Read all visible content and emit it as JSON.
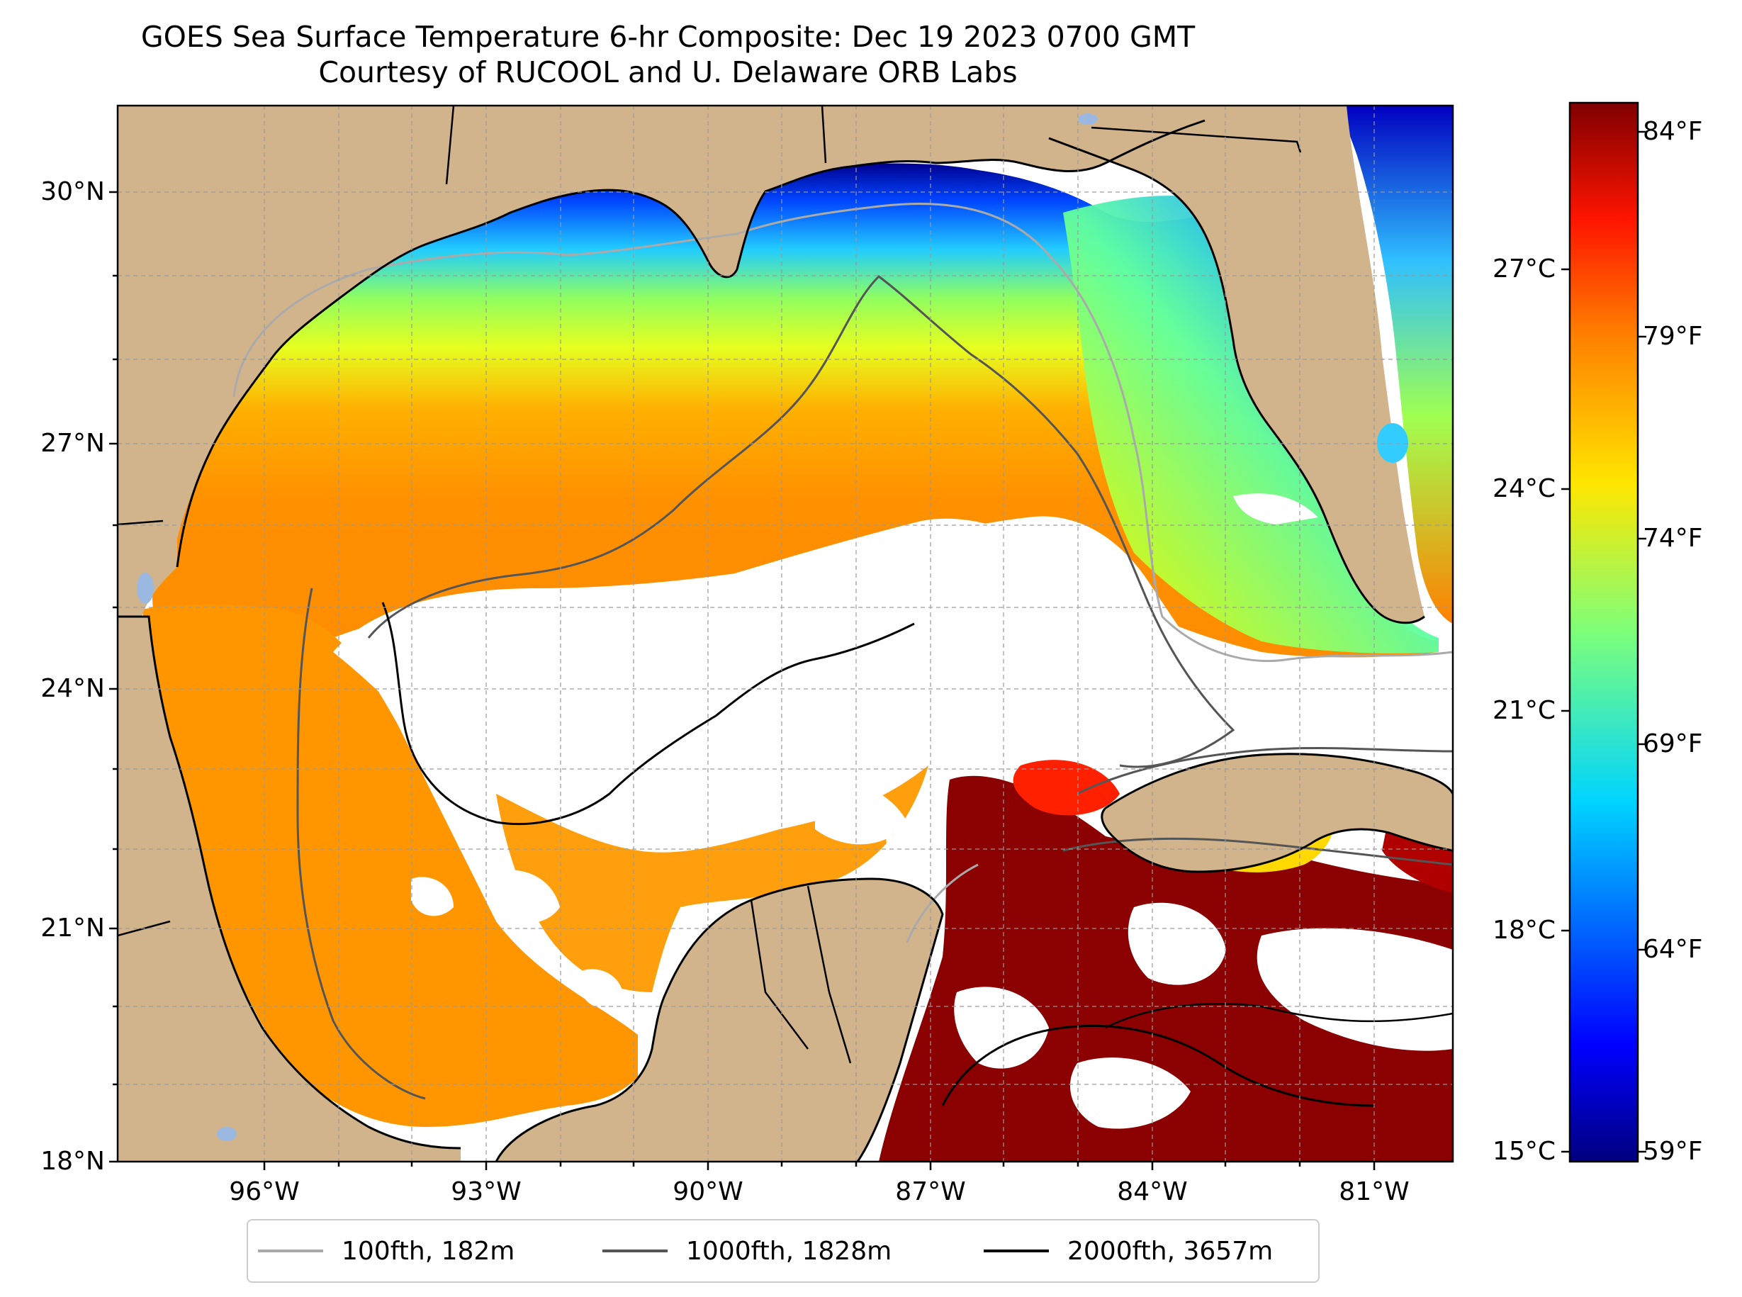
{
  "title": {
    "line1": "GOES Sea Surface Temperature 6-hr Composite: Dec 19 2023 0700 GMT",
    "line2": "Courtesy of RUCOOL and U. Delaware ORB Labs"
  },
  "map": {
    "extent": {
      "lon": [
        -98,
        -80
      ],
      "lat": [
        18,
        31
      ]
    },
    "latitude_ticks": [
      "30°N",
      "27°N",
      "24°N",
      "21°N",
      "18°N"
    ],
    "longitude_ticks": [
      "96°W",
      "93°W",
      "90°W",
      "87°W",
      "84°W",
      "81°W"
    ],
    "grid": true,
    "land_color": "#d2b48c",
    "no_data_color": "#ffffff"
  },
  "colorbar": {
    "celsius_ticks": [
      "27°C",
      "24°C",
      "21°C",
      "18°C",
      "15°C"
    ],
    "fahrenheit_ticks": [
      "84°F",
      "79°F",
      "74°F",
      "69°F",
      "64°F",
      "59°F"
    ],
    "colormap": "jet",
    "range_c": [
      15,
      29
    ]
  },
  "legend": {
    "items": [
      {
        "label": "100fth, 182m",
        "color": "#aaaaaa"
      },
      {
        "label": "1000fth, 1828m",
        "color": "#555555"
      },
      {
        "label": "2000fth, 3657m",
        "color": "#000000"
      }
    ]
  }
}
